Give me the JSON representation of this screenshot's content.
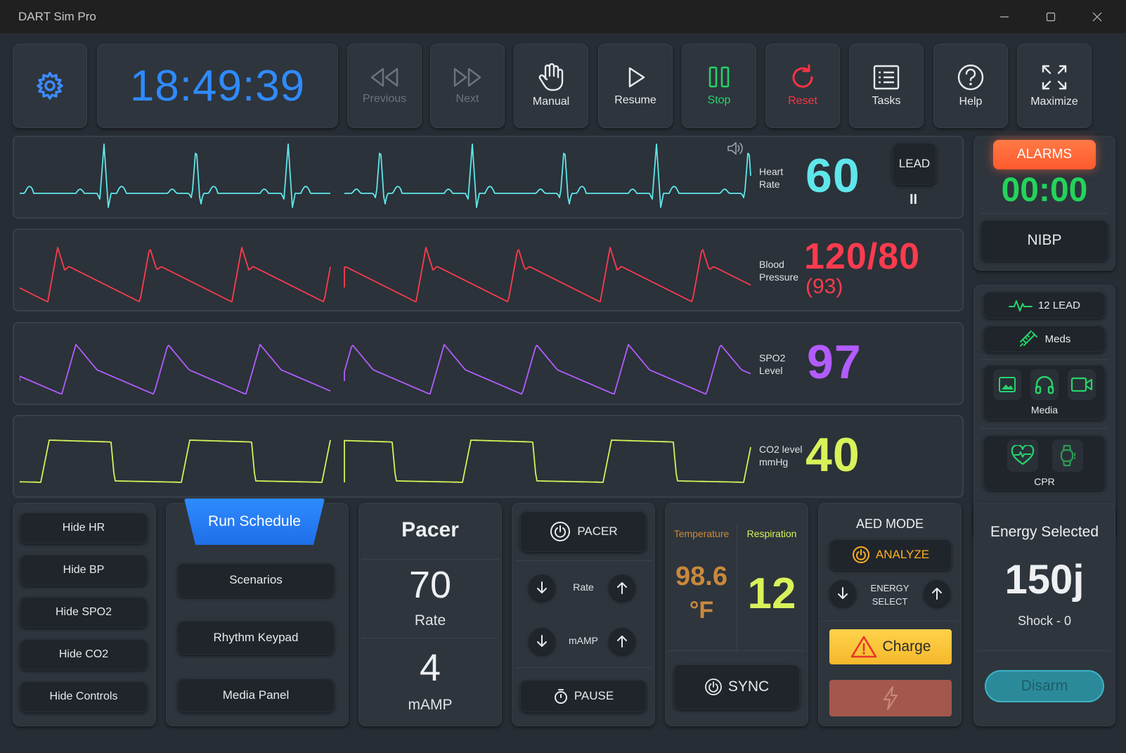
{
  "window": {
    "title": "DART Sim Pro"
  },
  "toolbar": {
    "clock": "18:49:39",
    "previous": "Previous",
    "next": "Next",
    "manual": "Manual",
    "resume": "Resume",
    "stop": "Stop",
    "reset": "Reset",
    "tasks": "Tasks",
    "help": "Help",
    "maximize": "Maximize"
  },
  "vitals": {
    "hr": {
      "label1": "Heart",
      "label2": "Rate",
      "value": "60"
    },
    "bp": {
      "label1": "Blood",
      "label2": "Pressure",
      "value": "120/80",
      "mean": "(93)"
    },
    "spo2": {
      "label1": "SPO2",
      "label2": "Level",
      "value": "97"
    },
    "co2": {
      "label1": "CO2 level",
      "label2": "mmHg",
      "value": "40"
    },
    "lead_button": "LEAD",
    "pause_glyph": "II"
  },
  "colors": {
    "hr": "#5fe6ea",
    "bp": "#ff3b4e",
    "spo2": "#b25cff",
    "co2": "#d8f25a",
    "accent_blue": "#2f8bff",
    "alarm": "#ff6a3d",
    "alarm_timer": "#24d35a",
    "temp": "#c9893d",
    "charge": "#ffc93c"
  },
  "side": {
    "alarms": "ALARMS",
    "alarm_timer": "00:00",
    "nibp": "NIBP",
    "twelve_lead": "12 LEAD",
    "meds": "Meds",
    "media": "Media",
    "cpr": "CPR"
  },
  "hide_controls": [
    "Hide HR",
    "Hide BP",
    "Hide SPO2",
    "Hide CO2",
    "Hide Controls"
  ],
  "schedule": {
    "run": "Run Schedule",
    "scenarios": "Scenarios",
    "rhythm_keypad": "Rhythm Keypad",
    "media_panel": "Media Panel"
  },
  "pacer_display": {
    "title": "Pacer",
    "rate_value": "70",
    "rate_label": "Rate",
    "mamp_value": "4",
    "mamp_label": "mAMP"
  },
  "pacer_controls": {
    "pacer": "PACER",
    "rate": "Rate",
    "mamp": "mAMP",
    "pause": "PAUSE"
  },
  "temp_resp": {
    "temp_label": "Temperature",
    "temp_value": "98.6",
    "temp_unit": "°F",
    "resp_label": "Respiration",
    "resp_value": "12",
    "sync": "SYNC"
  },
  "aed": {
    "mode": "AED MODE",
    "analyze": "ANALYZE",
    "energy_select_1": "ENERGY",
    "energy_select_2": "SELECT",
    "charge": "Charge"
  },
  "energy": {
    "title": "Energy Selected",
    "value": "150j",
    "shock": "Shock - 0",
    "disarm": "Disarm"
  }
}
